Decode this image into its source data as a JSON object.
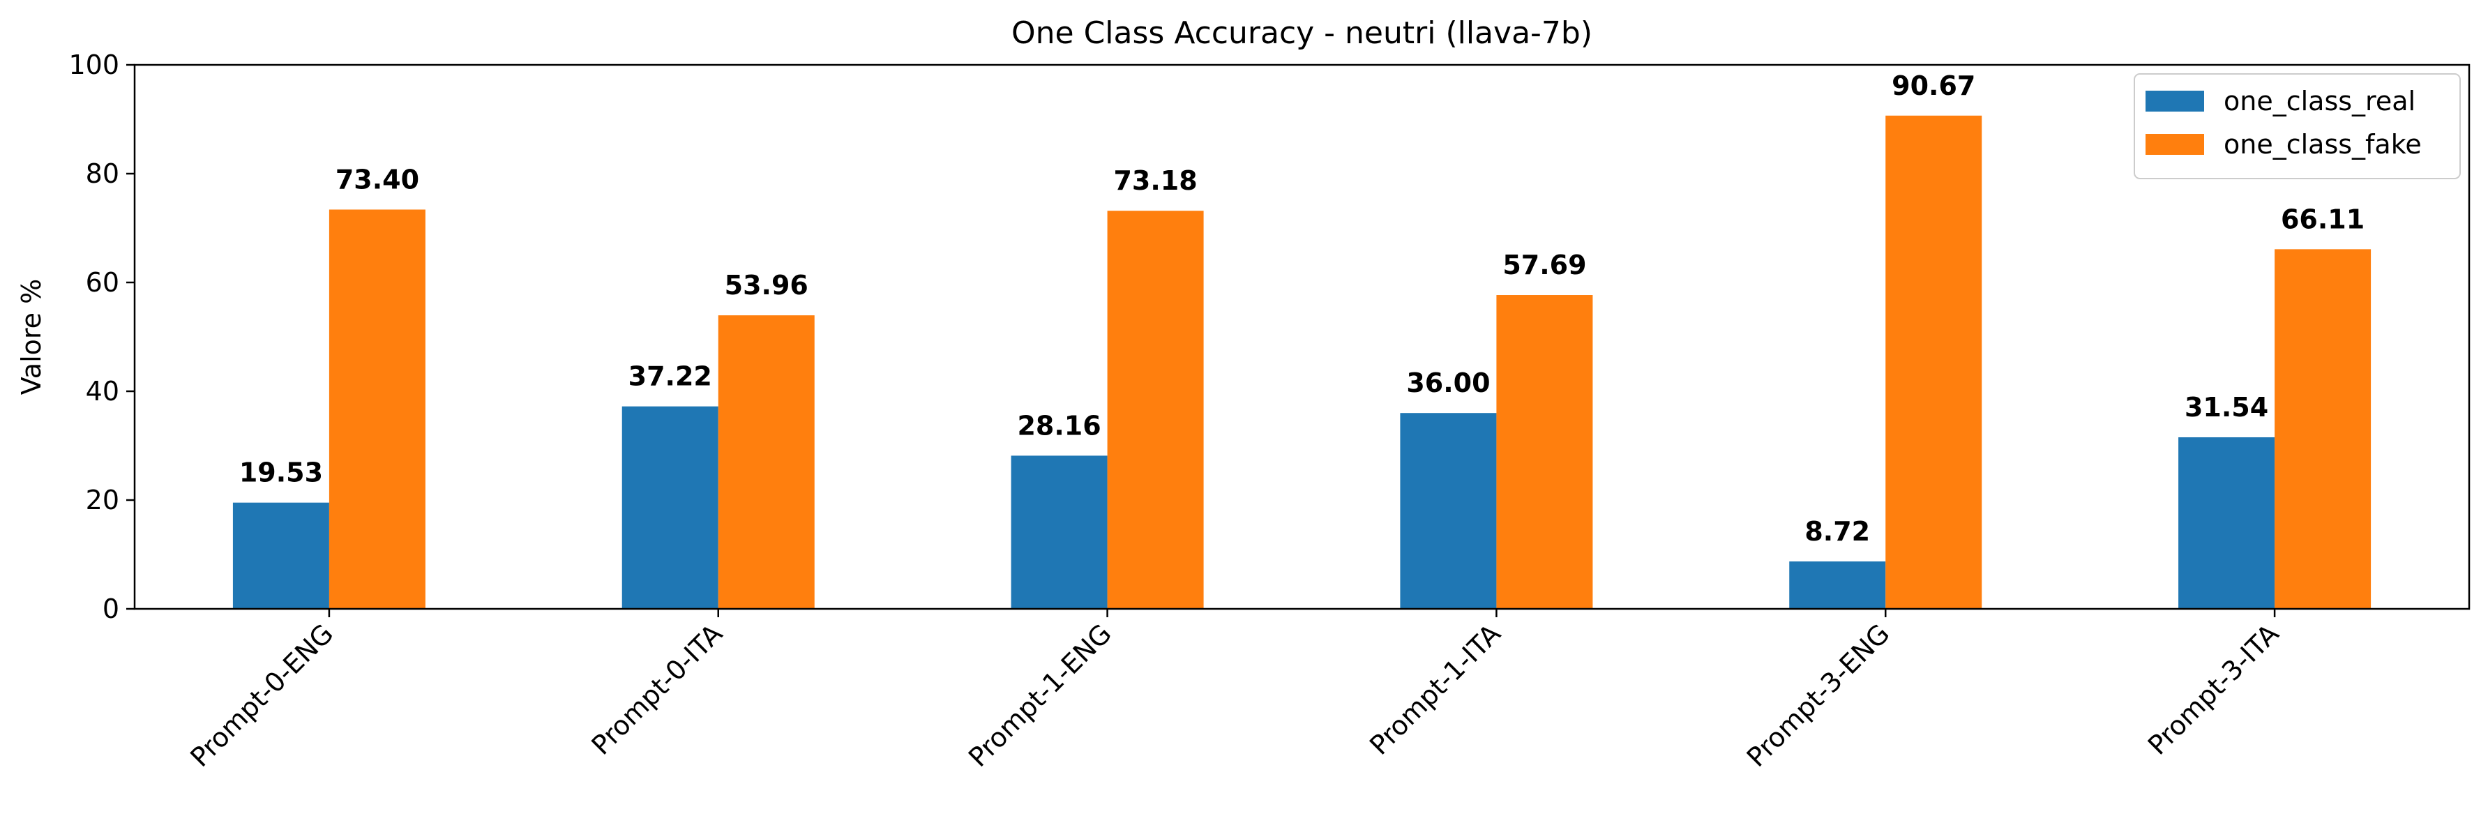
{
  "chart_data": {
    "type": "bar",
    "title": "One Class Accuracy - neutri (llava-7b)",
    "xlabel": "",
    "ylabel": "Valore %",
    "ylim": [
      0,
      100
    ],
    "yticks": [
      0,
      20,
      40,
      60,
      80,
      100
    ],
    "categories": [
      "Prompt-0-ENG",
      "Prompt-0-ITA",
      "Prompt-1-ENG",
      "Prompt-1-ITA",
      "Prompt-3-ENG",
      "Prompt-3-ITA"
    ],
    "series": [
      {
        "name": "one_class_real",
        "values": [
          19.53,
          37.22,
          28.16,
          36.0,
          8.72,
          31.54
        ],
        "labels": [
          "19.53",
          "37.22",
          "28.16",
          "36.00",
          "8.72",
          "31.54"
        ],
        "color": "#1f77b4"
      },
      {
        "name": "one_class_fake",
        "values": [
          73.4,
          53.96,
          73.18,
          57.69,
          90.67,
          66.11
        ],
        "labels": [
          "73.40",
          "53.96",
          "73.18",
          "57.69",
          "90.67",
          "66.11"
        ],
        "color": "#ff7f0e"
      }
    ],
    "legend_position": "top-right",
    "grid": false
  }
}
